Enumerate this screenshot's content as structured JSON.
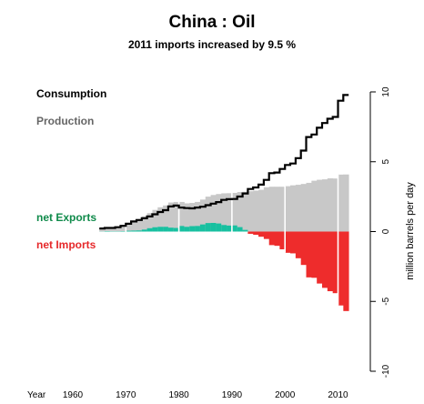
{
  "chart_data": {
    "type": "area",
    "title": "China :  Oil",
    "subtitle": "2011 imports increased by 9.5 %",
    "ylabel": "million barrels per day",
    "xlabel": "Year",
    "xlim": [
      1960,
      2012
    ],
    "ylim": [
      -10,
      10
    ],
    "x_ticks": [
      1960,
      1970,
      1980,
      1990,
      2000,
      2010
    ],
    "y_ticks": [
      10,
      5,
      0,
      -5,
      -10
    ],
    "grid": false,
    "decade_markers": [
      1970,
      1980,
      1990,
      2000,
      2010
    ],
    "legend": [
      {
        "label": "Consumption",
        "color": "#000000"
      },
      {
        "label": "Production",
        "color": "#666666"
      },
      {
        "label": "net Exports",
        "color": "#0f8a4a"
      },
      {
        "label": "net Imports",
        "color": "#e6282a"
      }
    ],
    "colors": {
      "production_fill": "#c8c8c8",
      "exports_fill": "#17c0a0",
      "imports_fill": "#ee2c2c",
      "consumption_line": "#000000",
      "marker_line": "#ffffff"
    },
    "years": [
      1965,
      1966,
      1967,
      1968,
      1969,
      1970,
      1971,
      1972,
      1973,
      1974,
      1975,
      1976,
      1977,
      1978,
      1979,
      1980,
      1981,
      1982,
      1983,
      1984,
      1985,
      1986,
      1987,
      1988,
      1989,
      1990,
      1991,
      1992,
      1993,
      1994,
      1995,
      1996,
      1997,
      1998,
      1999,
      2000,
      2001,
      2002,
      2003,
      2004,
      2005,
      2006,
      2007,
      2008,
      2009,
      2010,
      2011
    ],
    "series": [
      {
        "name": "Production",
        "values": [
          0.23,
          0.29,
          0.28,
          0.33,
          0.44,
          0.62,
          0.79,
          0.91,
          1.09,
          1.32,
          1.55,
          1.74,
          1.87,
          2.08,
          2.12,
          2.12,
          2.02,
          2.05,
          2.12,
          2.29,
          2.5,
          2.62,
          2.69,
          2.74,
          2.75,
          2.77,
          2.83,
          2.85,
          2.89,
          2.93,
          2.99,
          3.17,
          3.21,
          3.21,
          3.21,
          3.25,
          3.31,
          3.35,
          3.41,
          3.49,
          3.64,
          3.71,
          3.74,
          3.81,
          3.8,
          4.08,
          4.09
        ]
      },
      {
        "name": "Consumption",
        "values": [
          0.22,
          0.26,
          0.26,
          0.31,
          0.41,
          0.56,
          0.72,
          0.83,
          0.95,
          1.08,
          1.24,
          1.4,
          1.53,
          1.8,
          1.86,
          1.72,
          1.68,
          1.66,
          1.72,
          1.78,
          1.89,
          2.0,
          2.11,
          2.27,
          2.32,
          2.33,
          2.51,
          2.73,
          3.05,
          3.16,
          3.36,
          3.7,
          4.18,
          4.23,
          4.48,
          4.77,
          4.87,
          5.26,
          5.8,
          6.77,
          6.95,
          7.43,
          7.77,
          8.08,
          8.21,
          9.37,
          9.78
        ]
      }
    ]
  }
}
